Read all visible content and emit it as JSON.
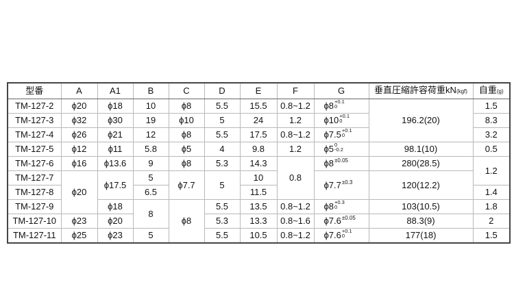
{
  "headers": {
    "model": "型番",
    "A": "A",
    "A1": "A1",
    "B": "B",
    "C": "C",
    "D": "D",
    "E": "E",
    "F": "F",
    "G": "G",
    "load": "垂直圧縮許容荷重kN",
    "load_unit": "(kgf)",
    "weight": "自重",
    "weight_unit": "(g)"
  },
  "phi": "ϕ",
  "rows": [
    {
      "model": "TM-127-2",
      "A": "20",
      "A1": "18",
      "B": "10",
      "C": "8",
      "D": "5.5",
      "E": "15.5",
      "F": "0.8~1.2",
      "G": {
        "base": "8",
        "upper": "+0.1",
        "lower": "0"
      },
      "load": "196.2(20)",
      "weight": "1.5"
    },
    {
      "model": "TM-127-3",
      "A": "32",
      "A1": "30",
      "B": "19",
      "C": "10",
      "D": "5",
      "E": "24",
      "F": "1.2",
      "G": {
        "base": "10",
        "upper": "+0.1",
        "lower": "0"
      },
      "load": null,
      "weight": "8.3"
    },
    {
      "model": "TM-127-4",
      "A": "26",
      "A1": "21",
      "B": "12",
      "C": "8",
      "D": "5.5",
      "E": "17.5",
      "F": "0.8~1.2",
      "G": {
        "base": "7.5",
        "upper": "+0.1",
        "lower": "0"
      },
      "load": null,
      "weight": "3.2"
    },
    {
      "model": "TM-127-5",
      "A": "12",
      "A1": "11",
      "B": "5.8",
      "C": "5",
      "D": "4",
      "E": "9.8",
      "F": "1.2",
      "G": {
        "base": "5",
        "upper": "0",
        "lower": "-0.2"
      },
      "load": "98.1(10)",
      "weight": "0.5"
    },
    {
      "model": "TM-127-6",
      "A": "16",
      "A1": "13.6",
      "B": "9",
      "C": "8",
      "D": "5.3",
      "E": "14.3",
      "F": "0.8",
      "G": {
        "base": "8",
        "tol": "±0.05"
      },
      "load": "280(28.5)",
      "weight": "1.2"
    },
    {
      "model": "TM-127-7",
      "A": "20",
      "A1": "17.5",
      "B": "5",
      "C": "7.7",
      "D": "5",
      "E": "10",
      "F": null,
      "G": {
        "base": "7.7",
        "tol": "±0.3"
      },
      "load": "120(12.2)",
      "weight": null
    },
    {
      "model": "TM-127-8",
      "A": null,
      "A1": null,
      "B": "6.5",
      "C": null,
      "D": null,
      "E": "11.5",
      "F": null,
      "G": null,
      "load": null,
      "weight": "1.4"
    },
    {
      "model": "TM-127-9",
      "A": null,
      "A1": "18",
      "B": "8",
      "C": "8",
      "D": "5.5",
      "E": "13.5",
      "F": "0.8~1.2",
      "G": {
        "base": "8",
        "upper": "+0.3",
        "lower": "0"
      },
      "load": "103(10.5)",
      "weight": "1.8"
    },
    {
      "model": "TM-127-10",
      "A": "23",
      "A1": "20",
      "B": null,
      "C": null,
      "D": "5.3",
      "E": "13.3",
      "F": "0.8~1.6",
      "G": {
        "base": "7.6",
        "tol": "±0.05"
      },
      "load": "88.3(9)",
      "weight": "2"
    },
    {
      "model": "TM-127-11",
      "A": "25",
      "A1": "23",
      "B": "5",
      "C": null,
      "D": "5.5",
      "E": "10.5",
      "F": "0.8~1.2",
      "G": {
        "base": "7.6",
        "upper": "+0.1",
        "lower": "0"
      },
      "load": "177(18)",
      "weight": "1.5"
    }
  ]
}
